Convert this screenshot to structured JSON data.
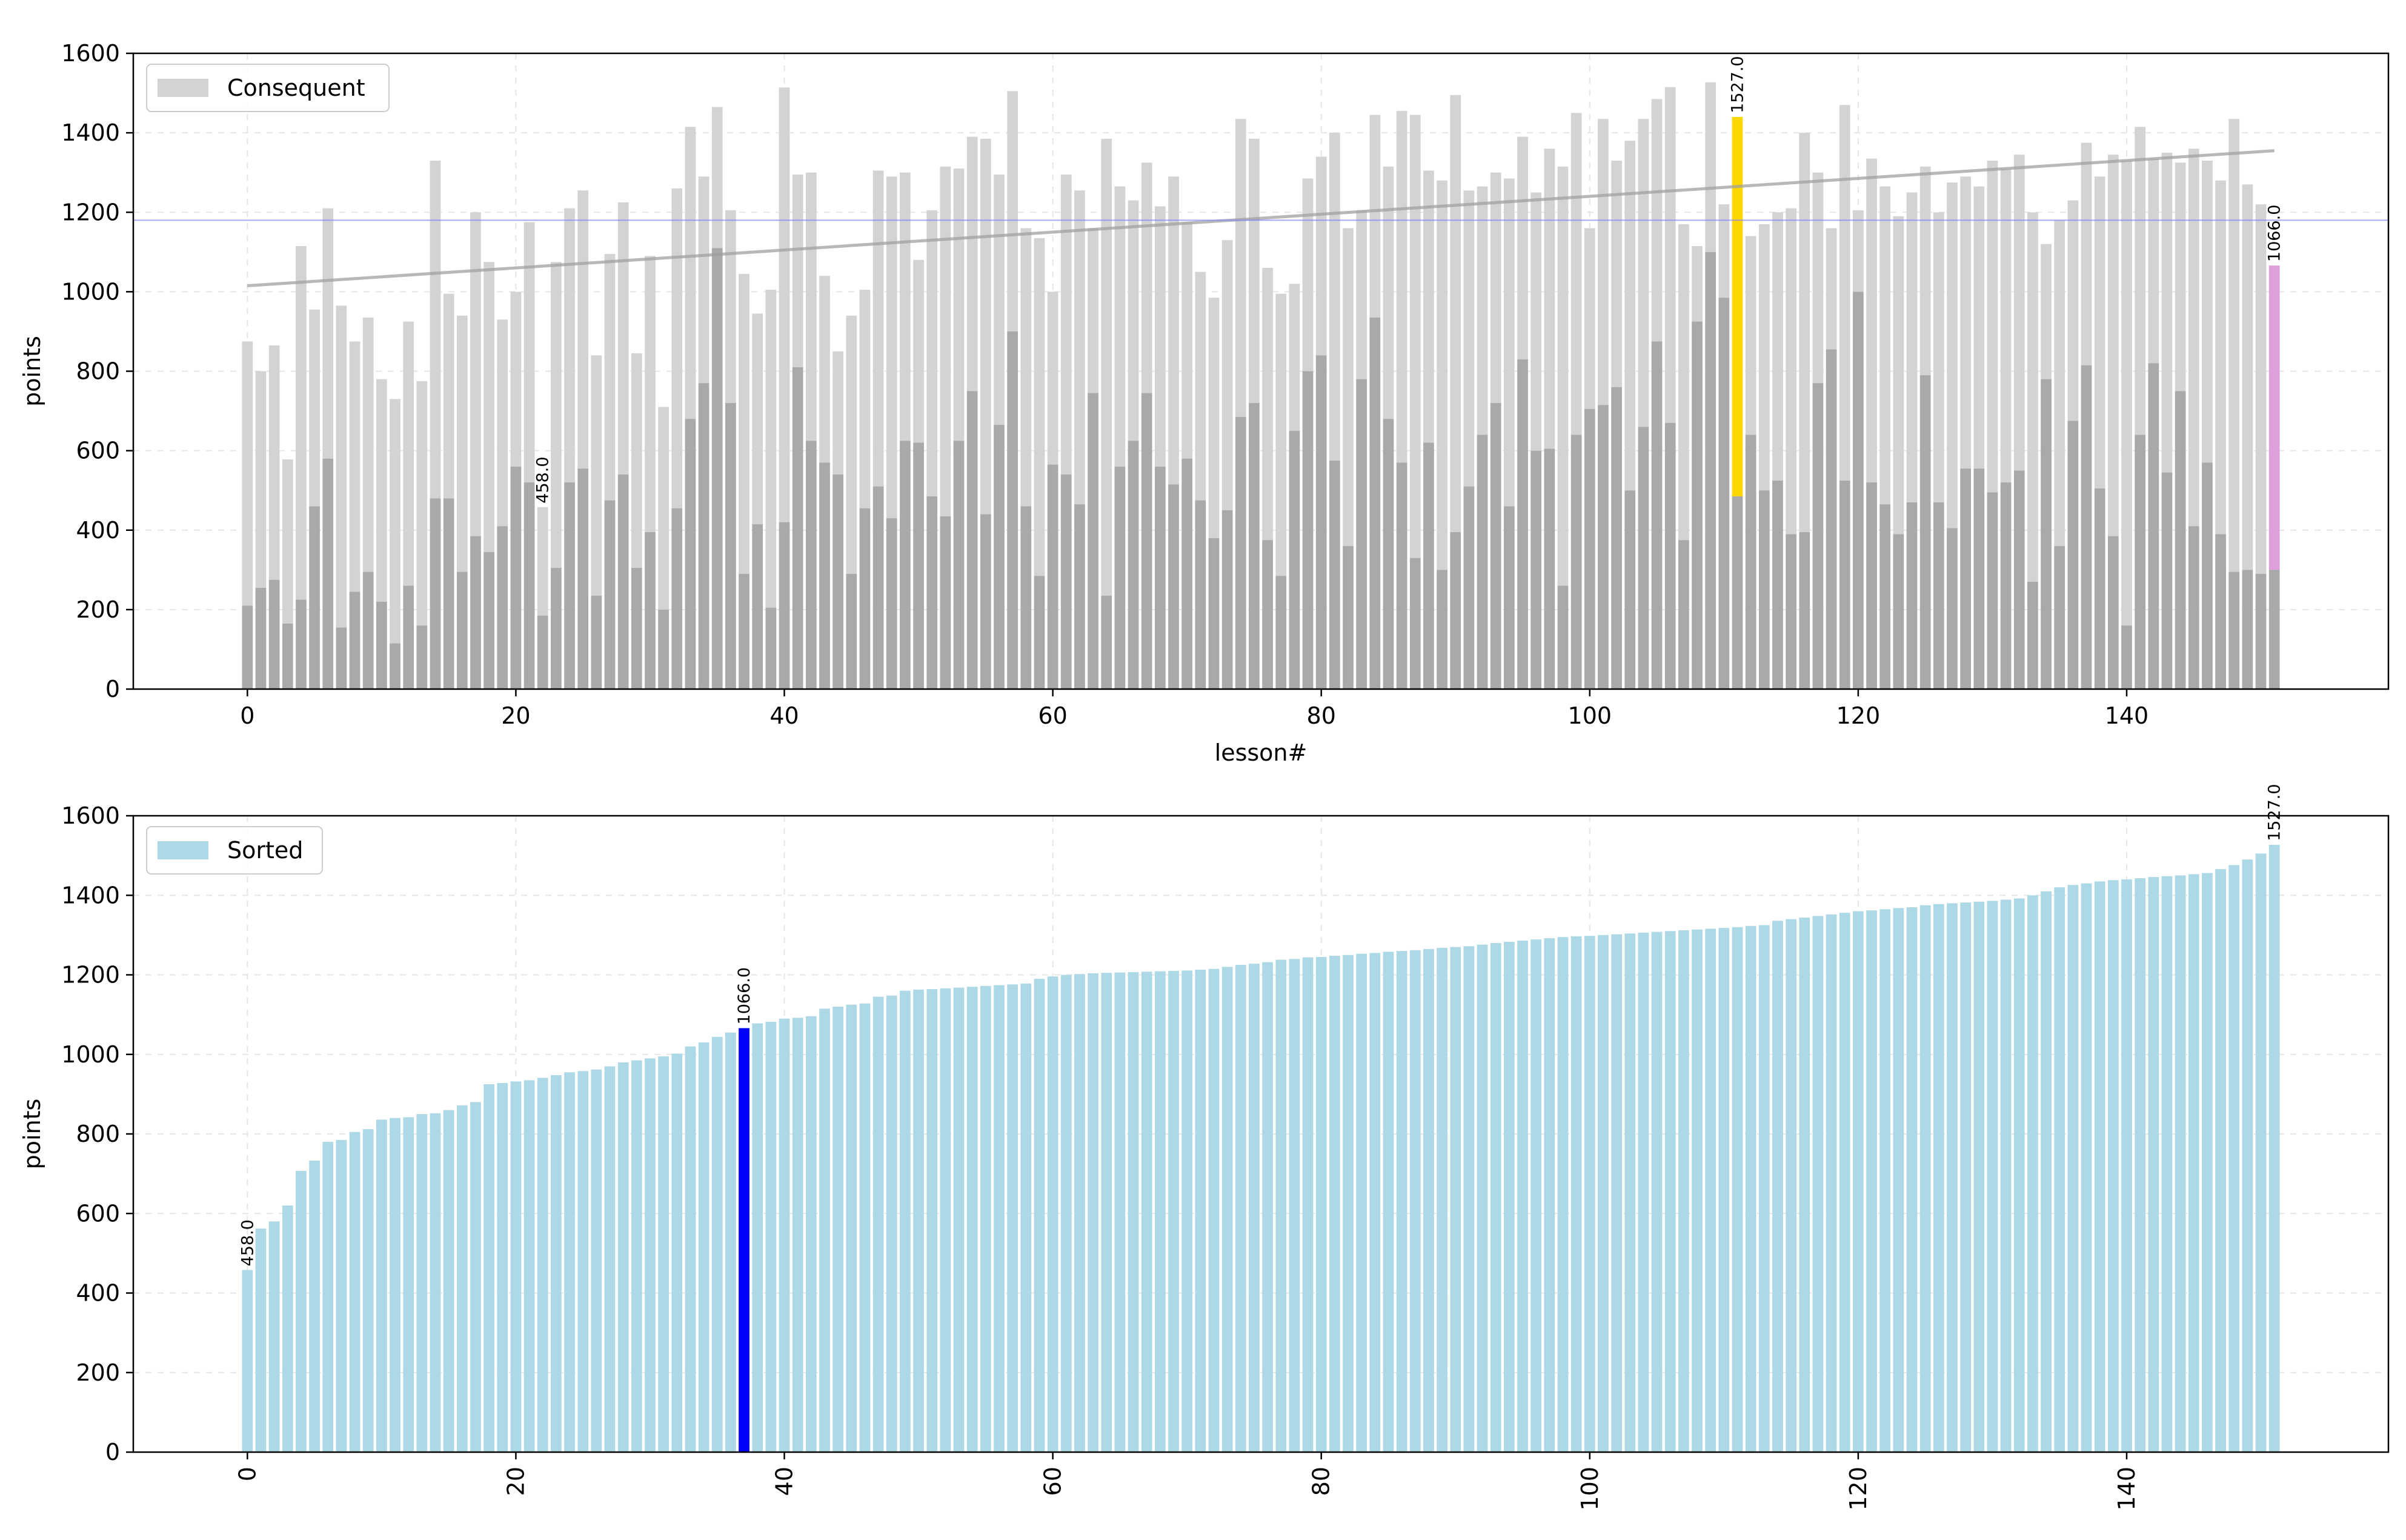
{
  "chart_data": [
    {
      "type": "bar",
      "xlabel": "lesson#",
      "ylabel": "points",
      "xlim": [
        -8.5,
        159.5
      ],
      "ylim": [
        0,
        1600
      ],
      "xticks": [
        "0",
        "20",
        "40",
        "60",
        "80",
        "100",
        "120",
        "140"
      ],
      "yticks": [
        "0",
        "200",
        "400",
        "600",
        "800",
        "1000",
        "1200",
        "1400",
        "1600"
      ],
      "grid": true,
      "legend": {
        "label": "Consequent",
        "placement": "top-left"
      },
      "x": [
        0,
        1,
        2,
        3,
        4,
        5,
        6,
        7,
        8,
        9,
        10,
        11,
        12,
        13,
        14,
        15,
        16,
        17,
        18,
        19,
        20,
        21,
        22,
        23,
        24,
        25,
        26,
        27,
        28,
        29,
        30,
        31,
        32,
        33,
        34,
        35,
        36,
        37,
        38,
        39,
        40,
        41,
        42,
        43,
        44,
        45,
        46,
        47,
        48,
        49,
        50,
        51,
        52,
        53,
        54,
        55,
        56,
        57,
        58,
        59,
        60,
        61,
        62,
        63,
        64,
        65,
        66,
        67,
        68,
        69,
        70,
        71,
        72,
        73,
        74,
        75,
        76,
        77,
        78,
        79,
        80,
        81,
        82,
        83,
        84,
        85,
        86,
        87,
        88,
        89,
        90,
        91,
        92,
        93,
        94,
        95,
        96,
        97,
        98,
        99,
        100,
        101,
        102,
        103,
        104,
        105,
        106,
        107,
        108,
        109,
        110,
        111,
        112,
        113,
        114,
        115,
        116,
        117,
        118,
        119,
        120,
        121,
        122,
        123,
        124,
        125,
        126,
        127,
        128,
        129,
        130,
        131,
        132,
        133,
        134,
        135,
        136,
        137,
        138,
        139,
        140,
        141,
        142,
        143,
        144,
        145,
        146,
        147,
        148,
        149,
        150,
        151
      ],
      "series": [
        {
          "name": "Consequent",
          "color": "#d3d3d3",
          "values": [
            875,
            800,
            865,
            578,
            1115,
            955,
            1210,
            965,
            875,
            935,
            780,
            730,
            925,
            775,
            1330,
            995,
            940,
            1200,
            1075,
            930,
            1000,
            1175,
            458,
            1075,
            1210,
            1255,
            840,
            1095,
            1225,
            845,
            1090,
            710,
            1260,
            1415,
            1290,
            1465,
            1205,
            1045,
            945,
            1005,
            1514,
            1295,
            1300,
            1040,
            850,
            940,
            1005,
            1305,
            1290,
            1300,
            1080,
            1205,
            1315,
            1310,
            1390,
            1385,
            1295,
            1505,
            1160,
            1135,
            1000,
            1295,
            1255,
            1160,
            1385,
            1265,
            1230,
            1325,
            1215,
            1290,
            1175,
            1050,
            985,
            1130,
            1435,
            1385,
            1060,
            995,
            1020,
            1285,
            1340,
            1400,
            1160,
            1205,
            1445,
            1315,
            1455,
            1445,
            1305,
            1280,
            1495,
            1255,
            1265,
            1300,
            1285,
            1390,
            1250,
            1360,
            1315,
            1450,
            1160,
            1435,
            1330,
            1380,
            1435,
            1485,
            1515,
            1170,
            1115,
            1527,
            1220,
            1440,
            1140,
            1170,
            1200,
            1210,
            1400,
            1300,
            1160,
            1470,
            1205,
            1335,
            1265,
            1190,
            1250,
            1315,
            1200,
            1275,
            1290,
            1265,
            1330,
            1310,
            1345,
            1200,
            1120,
            1180,
            1230,
            1375,
            1290,
            1345,
            1330,
            1415,
            1335,
            1350,
            1325,
            1360,
            1330,
            1280,
            1435,
            1270,
            1220,
            1066
          ],
          "highlights": [
            {
              "index": 22,
              "label": "458.0"
            },
            {
              "index": 111,
              "label": "1527.0",
              "color": "#ffd700"
            },
            {
              "index": 151,
              "label": "1066.0",
              "color": "#dda0dd"
            }
          ]
        },
        {
          "name": "",
          "color": "#a9a9a9",
          "values": [
            210,
            255,
            275,
            165,
            225,
            460,
            580,
            155,
            245,
            295,
            220,
            115,
            260,
            160,
            480,
            480,
            295,
            385,
            345,
            410,
            560,
            520,
            185,
            305,
            520,
            555,
            235,
            475,
            540,
            305,
            395,
            200,
            455,
            680,
            770,
            1110,
            720,
            290,
            415,
            205,
            420,
            810,
            625,
            570,
            540,
            290,
            455,
            510,
            430,
            625,
            620,
            485,
            435,
            625,
            750,
            440,
            665,
            900,
            460,
            285,
            565,
            540,
            465,
            745,
            235,
            560,
            625,
            745,
            560,
            515,
            580,
            475,
            380,
            450,
            685,
            720,
            375,
            285,
            650,
            800,
            840,
            575,
            360,
            780,
            935,
            680,
            570,
            330,
            620,
            300,
            395,
            510,
            640,
            720,
            460,
            830,
            600,
            605,
            260,
            640,
            705,
            715,
            760,
            500,
            660,
            875,
            670,
            375,
            925,
            1100,
            985,
            485,
            640,
            500,
            525,
            390,
            395,
            770,
            855,
            525,
            1000,
            520,
            465,
            390,
            470,
            790,
            470,
            405,
            555,
            555,
            495,
            520,
            550,
            270,
            780,
            360,
            675,
            815,
            505,
            385,
            160,
            640,
            820,
            545,
            750,
            410,
            570,
            390,
            295,
            300,
            290,
            300
          ]
        }
      ],
      "trend": [
        1015,
        1355
      ],
      "hline": 1180
    },
    {
      "type": "bar",
      "xlabel": "",
      "ylabel": "points",
      "xlim": [
        -8.5,
        159.5
      ],
      "ylim": [
        0,
        1600
      ],
      "xticks": [
        "0",
        "20",
        "40",
        "60",
        "80",
        "100",
        "120",
        "140"
      ],
      "yticks": [
        "0",
        "200",
        "400",
        "600",
        "800",
        "1000",
        "1200",
        "1400",
        "1600"
      ],
      "grid": true,
      "legend": {
        "label": "Sorted",
        "placement": "top-left"
      },
      "series": [
        {
          "name": "Sorted",
          "color": "#add8e6",
          "values": [
            458,
            562,
            580,
            620,
            707,
            733,
            780,
            785,
            805,
            812,
            836,
            840,
            842,
            850,
            852,
            860,
            872,
            880,
            925,
            928,
            932,
            935,
            941,
            948,
            955,
            958,
            962,
            970,
            980,
            985,
            990,
            995,
            1002,
            1020,
            1030,
            1044,
            1055,
            1066,
            1078,
            1082,
            1090,
            1092,
            1096,
            1115,
            1120,
            1125,
            1128,
            1145,
            1148,
            1160,
            1163,
            1164,
            1166,
            1168,
            1170,
            1172,
            1174,
            1176,
            1178,
            1190,
            1196,
            1200,
            1202,
            1204,
            1205,
            1206,
            1207,
            1208,
            1209,
            1210,
            1211,
            1213,
            1215,
            1220,
            1225,
            1228,
            1232,
            1238,
            1240,
            1244,
            1245,
            1248,
            1250,
            1253,
            1255,
            1258,
            1260,
            1262,
            1265,
            1268,
            1270,
            1272,
            1276,
            1280,
            1283,
            1286,
            1289,
            1292,
            1295,
            1297,
            1298,
            1300,
            1302,
            1304,
            1306,
            1308,
            1310,
            1312,
            1314,
            1316,
            1318,
            1320,
            1323,
            1325,
            1336,
            1340,
            1344,
            1348,
            1352,
            1356,
            1360,
            1362,
            1365,
            1368,
            1370,
            1375,
            1378,
            1380,
            1382,
            1384,
            1386,
            1389,
            1392,
            1400,
            1410,
            1420,
            1426,
            1430,
            1435,
            1438,
            1440,
            1443,
            1446,
            1448,
            1450,
            1453,
            1456,
            1466,
            1476,
            1490,
            1505,
            1527
          ],
          "highlights": [
            {
              "index": 0,
              "label": "458.0"
            },
            {
              "index": 37,
              "label": "1066.0",
              "color": "#0000ff"
            },
            {
              "index": 151,
              "label": "1527.0"
            }
          ]
        }
      ]
    }
  ]
}
